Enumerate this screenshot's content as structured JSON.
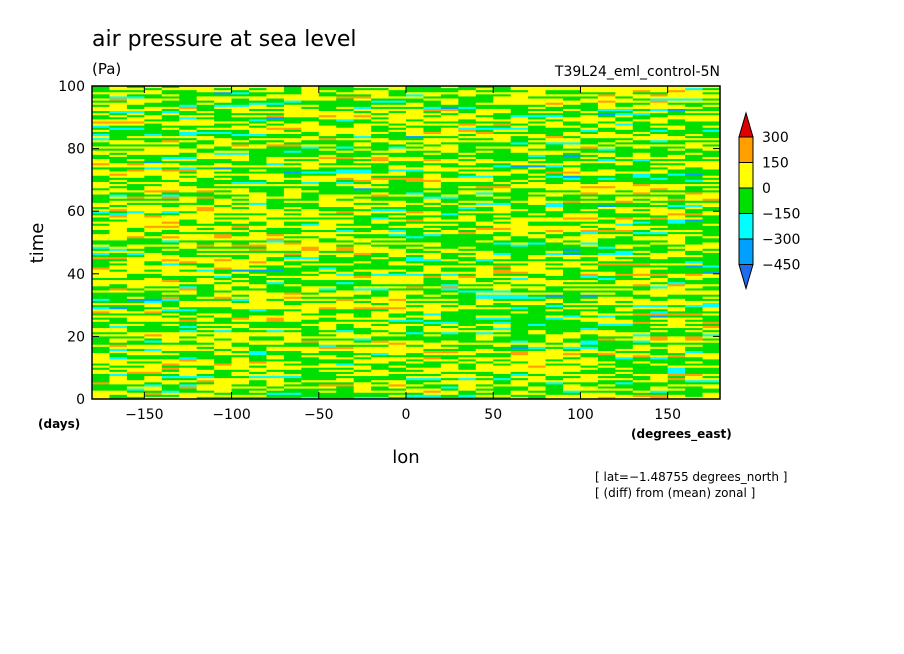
{
  "chart_data": {
    "type": "heatmap",
    "title": "air pressure at sea level",
    "units": "(Pa)",
    "run_label": "T39L24_eml_control-5N",
    "xlabel": "lon",
    "ylabel": "time",
    "x_units": "(degrees_east)",
    "y_units": "(days)",
    "xlim": [
      -180,
      180
    ],
    "ylim": [
      0,
      100
    ],
    "x_ticks": [
      -150,
      -100,
      -50,
      0,
      50,
      100,
      150
    ],
    "x_tick_labels": [
      "−150",
      "−100",
      "−50",
      "0",
      "50",
      "100",
      "150"
    ],
    "y_ticks": [
      0,
      20,
      40,
      60,
      80,
      100
    ],
    "y_tick_labels": [
      "0",
      "20",
      "40",
      "60",
      "80",
      "100"
    ],
    "notes": [
      "[ lat=−1.48755 degrees_north ]",
      "[ (diff) from (mean) zonal ]"
    ],
    "colorbar": {
      "levels": [
        -450,
        -300,
        -150,
        0,
        150,
        300
      ],
      "level_labels": [
        "−450",
        "−300",
        "−150",
        "0",
        "150",
        "300"
      ],
      "colors": [
        "#1e6cf0",
        "#00a0ff",
        "#00ffff",
        "#00e000",
        "#ffff00",
        "#ffa000",
        "#e00000"
      ]
    }
  }
}
